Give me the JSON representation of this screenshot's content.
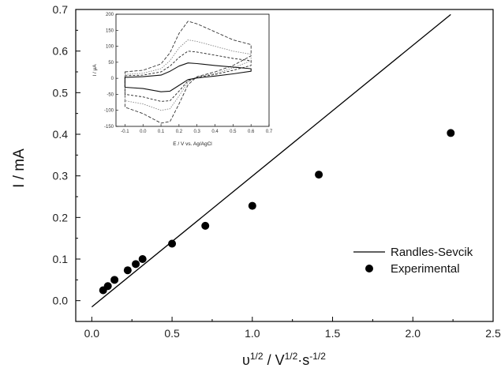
{
  "chart_data": [
    {
      "type": "scatter",
      "x_label_text": "υ",
      "x_label_sup1": "1/2",
      "x_label_mid": " / V",
      "x_label_sup2": "1/2",
      "x_label_mid2": "·s",
      "x_label_sup3": "-1/2",
      "ylabel": "I / mA",
      "xlim": [
        -0.1,
        2.5
      ],
      "ylim": [
        -0.05,
        0.7
      ],
      "x_ticks": [
        "0.0",
        "0.5",
        "1.0",
        "1.5",
        "2.0",
        "2.5"
      ],
      "y_ticks": [
        "0.0",
        "0.1",
        "0.2",
        "0.3",
        "0.4",
        "0.5",
        "0.6",
        "0.7"
      ],
      "legend_position": "right-middle",
      "series": [
        {
          "name": "Randles-Sevcik",
          "kind": "line",
          "color": "#000000",
          "x": [
            0.0,
            2.236
          ],
          "y": [
            -0.015,
            0.688
          ]
        },
        {
          "name": "Experimental",
          "kind": "scatter",
          "color": "#000000",
          "x": [
            0.0707,
            0.1,
            0.1414,
            0.2236,
            0.2739,
            0.3162,
            0.5,
            0.7071,
            1.0,
            1.4142,
            2.2361
          ],
          "y": [
            0.025,
            0.035,
            0.05,
            0.073,
            0.088,
            0.1,
            0.137,
            0.18,
            0.228,
            0.303,
            0.403
          ]
        }
      ]
    },
    {
      "type": "line",
      "ylabel": "I / μA",
      "xlabel": "E / V vs. Ag/AgCl",
      "xlim": [
        -0.15,
        0.7
      ],
      "ylim": [
        -150,
        200
      ],
      "x_ticks": [
        "-0.1",
        "0.0",
        "0.1",
        "0.2",
        "0.3",
        "0.4",
        "0.5",
        "0.6",
        "0.7"
      ],
      "y_ticks": [
        "-150",
        "-100",
        "-50",
        "0",
        "50",
        "100",
        "150",
        "200"
      ],
      "series": [
        {
          "style": "dashed-outer",
          "x": [
            -0.1,
            0.0,
            0.1,
            0.15,
            0.2,
            0.25,
            0.3,
            0.4,
            0.5,
            0.6,
            0.6,
            0.5,
            0.4,
            0.3,
            0.25,
            0.2,
            0.15,
            0.1,
            0.0,
            -0.1
          ],
          "y": [
            20,
            25,
            45,
            80,
            140,
            178,
            170,
            145,
            120,
            105,
            70,
            40,
            20,
            5,
            -20,
            -80,
            -135,
            -140,
            -110,
            -90
          ]
        },
        {
          "style": "dotted",
          "x": [
            -0.1,
            0.0,
            0.1,
            0.15,
            0.2,
            0.25,
            0.3,
            0.4,
            0.5,
            0.6,
            0.6,
            0.5,
            0.4,
            0.3,
            0.25,
            0.2,
            0.15,
            0.1,
            0.0,
            -0.1
          ],
          "y": [
            12,
            16,
            30,
            55,
            95,
            120,
            115,
            100,
            85,
            75,
            55,
            32,
            15,
            5,
            -12,
            -55,
            -95,
            -100,
            -80,
            -70
          ]
        },
        {
          "style": "dashed",
          "x": [
            -0.1,
            0.0,
            0.1,
            0.15,
            0.2,
            0.25,
            0.3,
            0.4,
            0.5,
            0.6,
            0.6,
            0.5,
            0.4,
            0.3,
            0.25,
            0.2,
            0.15,
            0.1,
            0.0,
            -0.1
          ],
          "y": [
            8,
            10,
            20,
            38,
            65,
            85,
            82,
            72,
            62,
            55,
            40,
            25,
            12,
            3,
            -8,
            -40,
            -70,
            -72,
            -58,
            -50
          ]
        },
        {
          "style": "solid",
          "x": [
            -0.1,
            0.0,
            0.1,
            0.15,
            0.2,
            0.25,
            0.3,
            0.4,
            0.5,
            0.6,
            0.6,
            0.5,
            0.4,
            0.3,
            0.25,
            0.2,
            0.15,
            0.1,
            0.0,
            -0.1
          ],
          "y": [
            3,
            5,
            10,
            22,
            38,
            48,
            46,
            40,
            35,
            30,
            22,
            14,
            7,
            1,
            -4,
            -22,
            -40,
            -42,
            -32,
            -28
          ]
        }
      ]
    }
  ]
}
